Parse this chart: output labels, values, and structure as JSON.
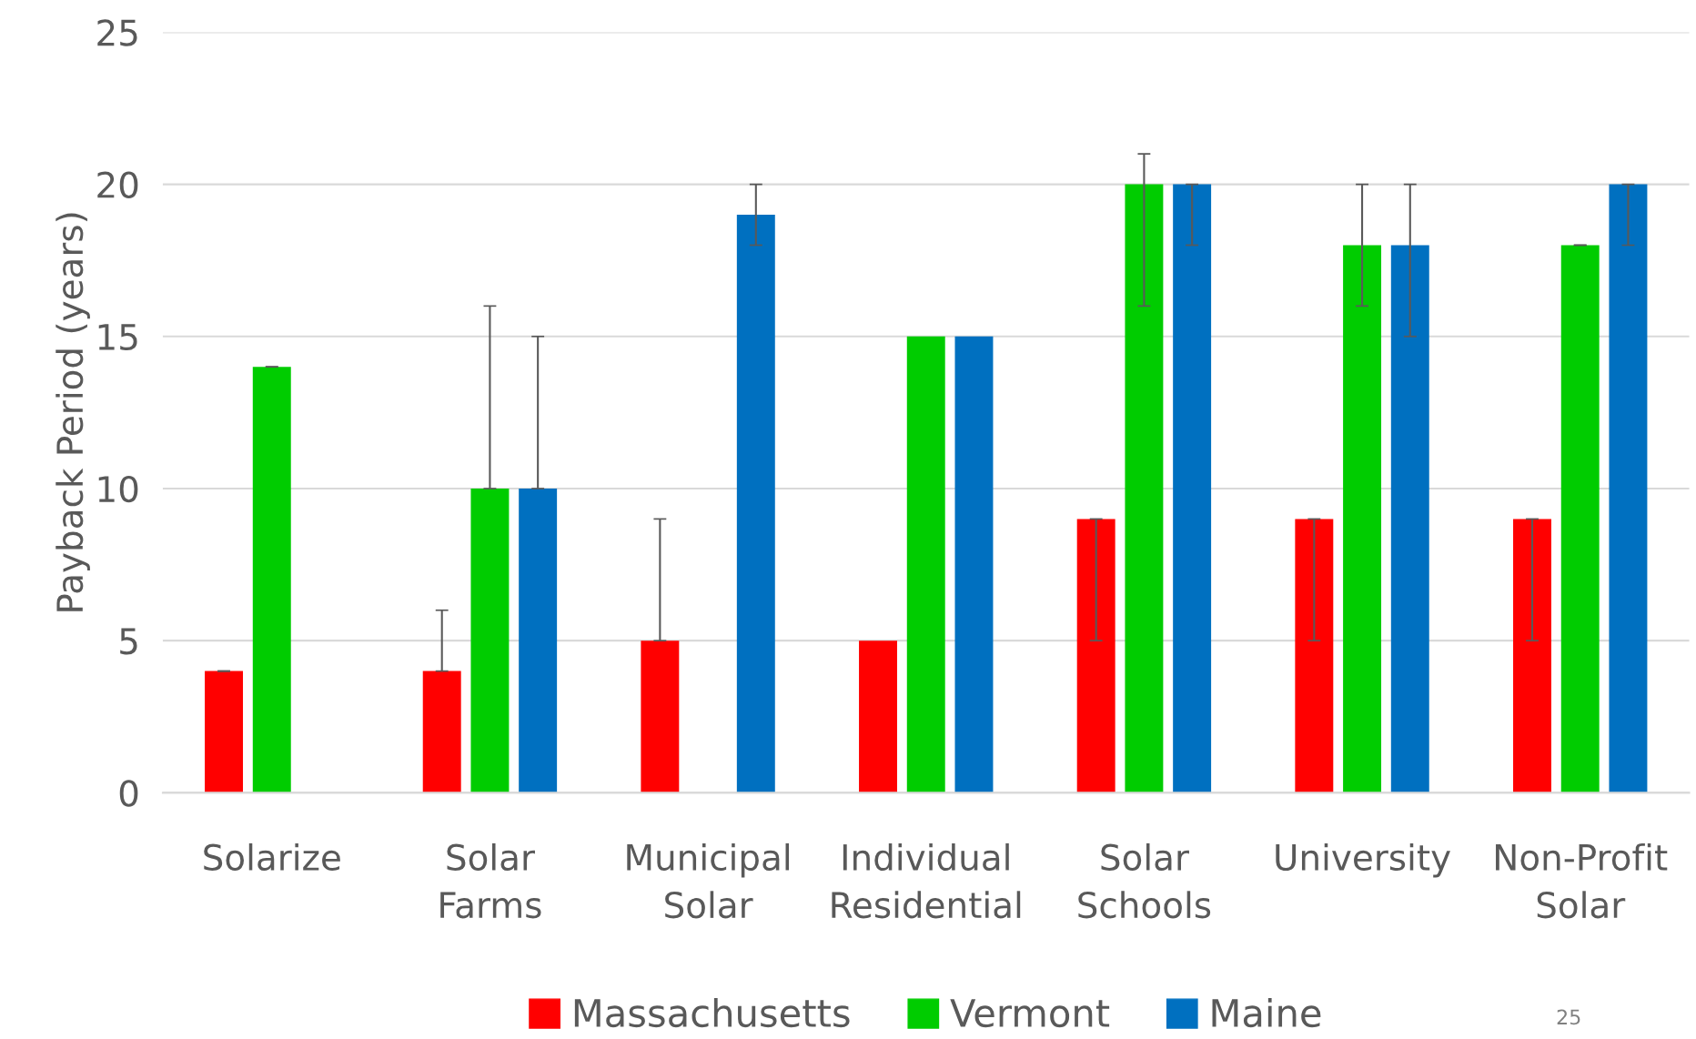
{
  "chart_data": {
    "type": "bar",
    "ylabel": "Payback Period (years)",
    "categories": [
      "Solarize",
      "Solar\nFarms",
      "Municipal\nSolar",
      "Individual\nResidential",
      "Solar\nSchools",
      "University",
      "Non-Profit\nSolar"
    ],
    "series": [
      {
        "name": "Massachusetts",
        "color": "#ff0000",
        "values": [
          4,
          4,
          5,
          5,
          9,
          9,
          9
        ],
        "errors": [
          [
            4,
            4
          ],
          [
            4,
            6
          ],
          [
            5,
            9
          ],
          null,
          [
            5,
            9
          ],
          [
            5,
            9
          ],
          [
            5,
            9
          ]
        ]
      },
      {
        "name": "Vermont",
        "color": "#00cc00",
        "values": [
          14,
          10,
          null,
          15,
          20,
          18,
          18
        ],
        "errors": [
          [
            14,
            14
          ],
          [
            10,
            16
          ],
          null,
          null,
          [
            16,
            21
          ],
          [
            16,
            20
          ],
          [
            18,
            18
          ]
        ]
      },
      {
        "name": "Maine",
        "color": "#0070c0",
        "values": [
          null,
          10,
          19,
          15,
          20,
          18,
          20
        ],
        "errors": [
          null,
          [
            10,
            15
          ],
          [
            18,
            20
          ],
          null,
          [
            18,
            20
          ],
          [
            15,
            20
          ],
          [
            18,
            20
          ]
        ]
      }
    ],
    "ylim": [
      0,
      25
    ],
    "yticks": [
      0,
      5,
      10,
      15,
      20,
      25
    ],
    "grid": "y",
    "legend": "bottom",
    "annotations": [
      "25"
    ]
  }
}
